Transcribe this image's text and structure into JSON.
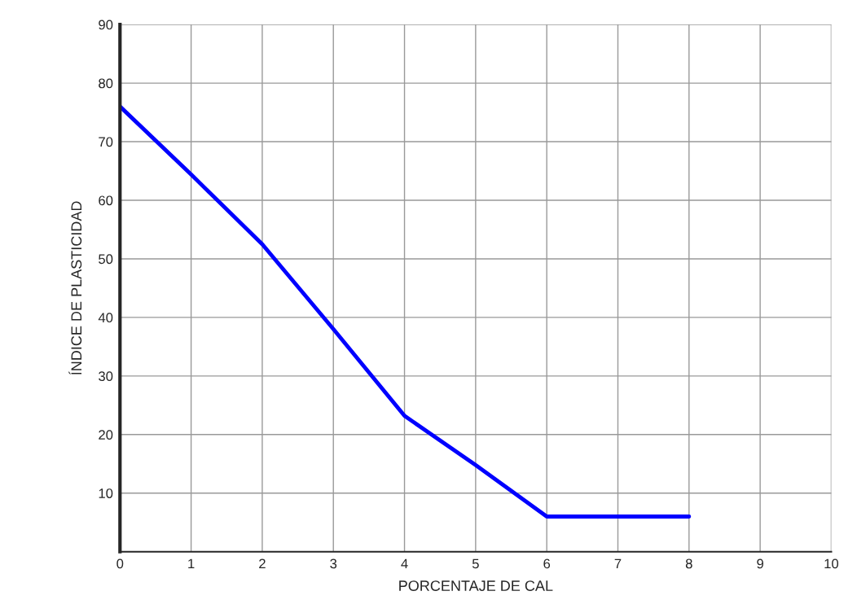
{
  "chart_data": {
    "type": "line",
    "xlabel": "PORCENTAJE DE CAL",
    "ylabel": "ÍNDICE DE PLASTICIDAD",
    "x": [
      0,
      1,
      2,
      3,
      4,
      5,
      6,
      7,
      8
    ],
    "series": [
      {
        "color": "#0000ff",
        "values": [
          76,
          64.4,
          52.5,
          38,
          23.2,
          14.8,
          6,
          6,
          6
        ]
      }
    ],
    "xlim": [
      0,
      10
    ],
    "xticks": [
      0,
      1,
      2,
      3,
      4,
      5,
      6,
      7,
      8,
      9,
      10
    ],
    "ylim": [
      0,
      90
    ],
    "yticks": [
      10,
      20,
      30,
      40,
      50,
      60,
      70,
      80,
      90
    ],
    "grid": true,
    "marker": "none",
    "line_style": "solid"
  }
}
